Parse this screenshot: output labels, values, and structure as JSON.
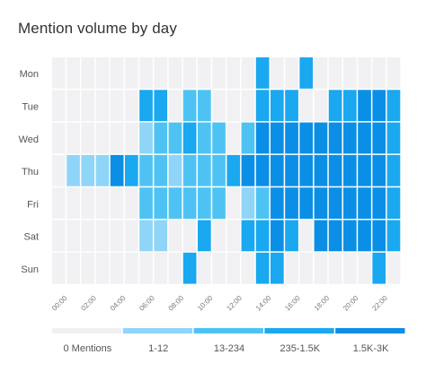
{
  "chart_data": {
    "type": "heatmap",
    "title": "Mention volume by day",
    "days": [
      "Mon",
      "Tue",
      "Wed",
      "Thu",
      "Fri",
      "Sat",
      "Sun"
    ],
    "hour_labels": [
      "00:00",
      "02:00",
      "04:00",
      "06:00",
      "08:00",
      "10:00",
      "12:00",
      "14:00",
      "16:00",
      "18:00",
      "20:00",
      "22:00"
    ],
    "hours_count": 24,
    "levels": [
      {
        "label": "0 Mentions",
        "color": "#f1f1f3"
      },
      {
        "label": "1-12",
        "color": "#8fd5f8"
      },
      {
        "label": "13-234",
        "color": "#4ec3f3"
      },
      {
        "label": "235-1.5K",
        "color": "#1aa8f0"
      },
      {
        "label": "1.5K-3K",
        "color": "#0b8fe6"
      }
    ],
    "values": [
      [
        0,
        0,
        0,
        0,
        0,
        0,
        0,
        0,
        0,
        0,
        0,
        0,
        0,
        0,
        3,
        0,
        0,
        3,
        0,
        0,
        0,
        0,
        0,
        0
      ],
      [
        0,
        0,
        0,
        0,
        0,
        0,
        3,
        3,
        0,
        2,
        2,
        0,
        0,
        0,
        3,
        3,
        3,
        0,
        0,
        3,
        3,
        4,
        4,
        3
      ],
      [
        0,
        0,
        0,
        0,
        0,
        0,
        1,
        2,
        2,
        3,
        2,
        2,
        0,
        2,
        4,
        4,
        4,
        4,
        4,
        4,
        4,
        4,
        4,
        3
      ],
      [
        0,
        1,
        1,
        1,
        4,
        3,
        2,
        2,
        1,
        2,
        2,
        2,
        3,
        4,
        4,
        4,
        4,
        4,
        4,
        4,
        4,
        4,
        4,
        3
      ],
      [
        0,
        0,
        0,
        0,
        0,
        0,
        2,
        2,
        2,
        2,
        2,
        2,
        0,
        1,
        2,
        4,
        4,
        4,
        4,
        4,
        4,
        4,
        4,
        3
      ],
      [
        0,
        0,
        0,
        0,
        0,
        0,
        1,
        1,
        0,
        0,
        3,
        0,
        0,
        3,
        3,
        4,
        3,
        0,
        4,
        4,
        4,
        4,
        4,
        3
      ],
      [
        0,
        0,
        0,
        0,
        0,
        0,
        0,
        0,
        0,
        3,
        0,
        0,
        0,
        0,
        3,
        3,
        0,
        0,
        0,
        0,
        0,
        0,
        3,
        0
      ]
    ]
  }
}
